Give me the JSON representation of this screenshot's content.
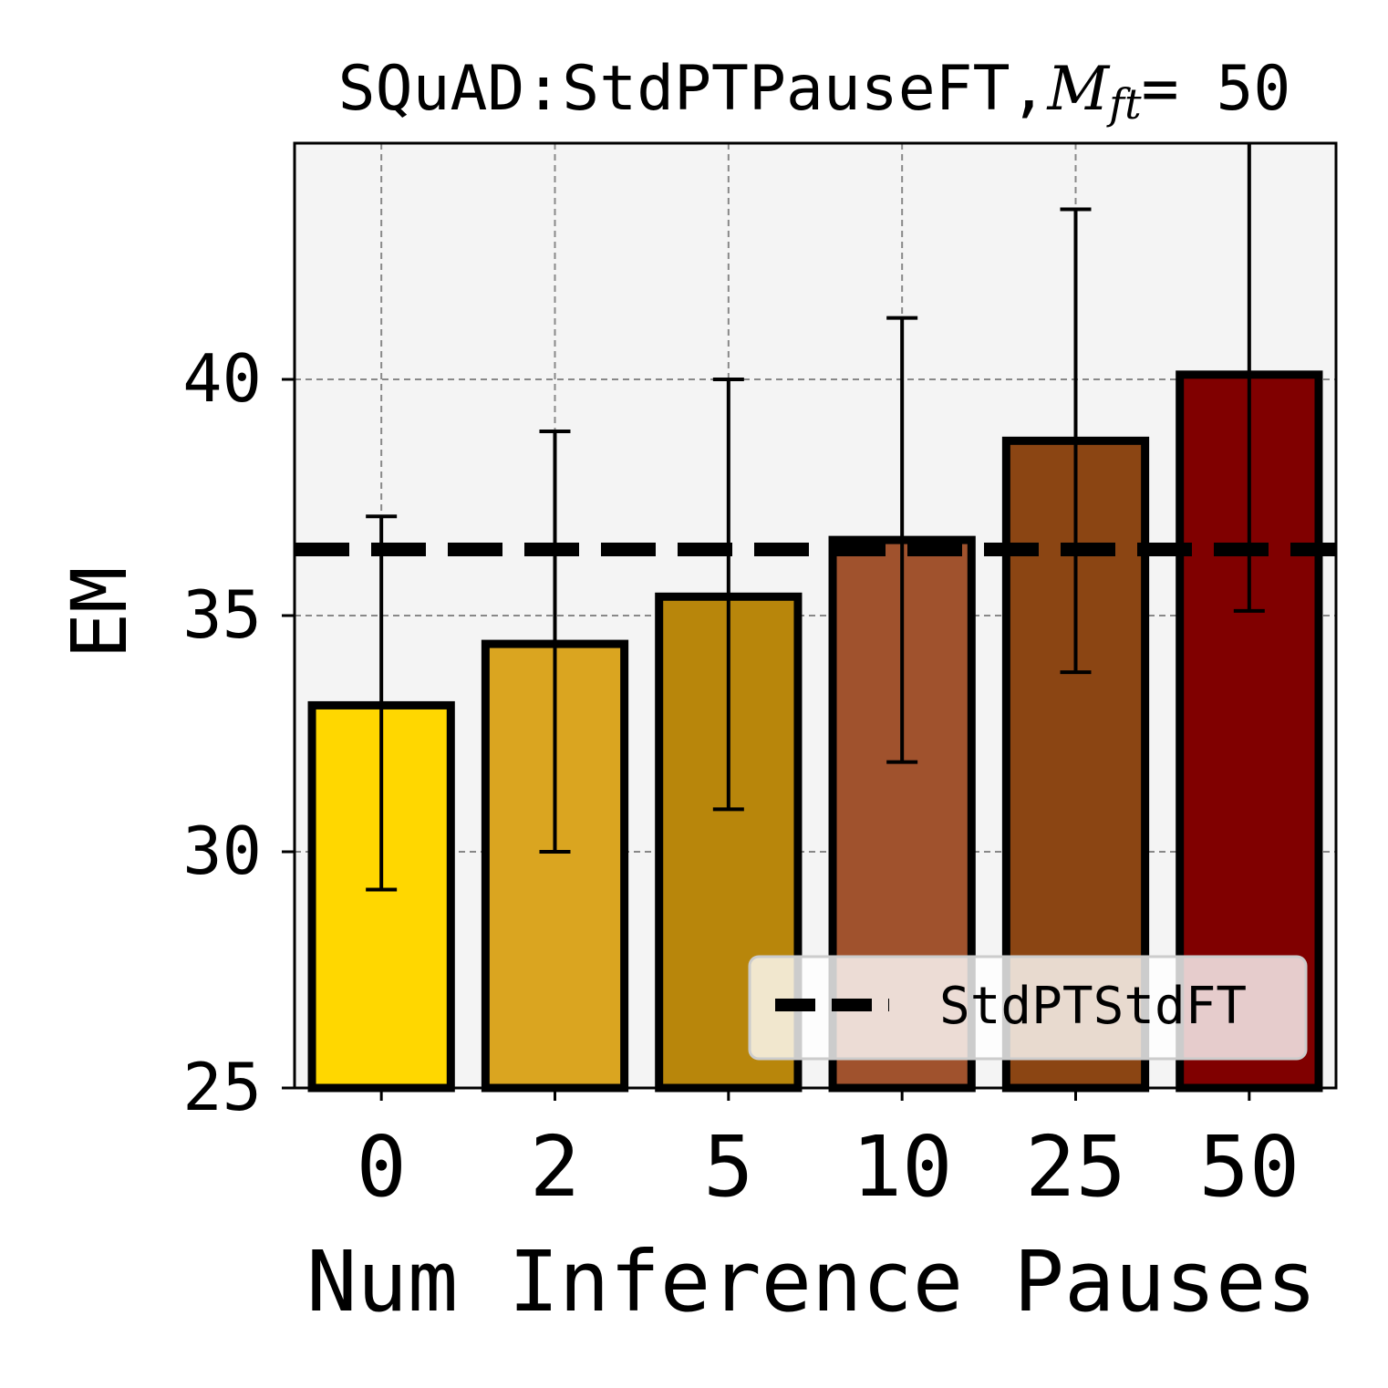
{
  "chart_data": {
    "type": "bar",
    "title_prefix": "SQuAD:StdPTPauseFT,",
    "title_math_var": "M",
    "title_math_sub": "ft",
    "title_math_eq": "= 50",
    "xlabel": "Num Inference Pauses",
    "ylabel": "EM",
    "categories": [
      "0",
      "2",
      "5",
      "10",
      "25",
      "50"
    ],
    "values": [
      33.1,
      34.4,
      35.4,
      36.6,
      38.7,
      40.1
    ],
    "error_low": [
      29.2,
      30.0,
      30.9,
      31.9,
      33.8,
      35.1
    ],
    "error_high": [
      37.1,
      38.9,
      40.0,
      41.3,
      43.6,
      45.5
    ],
    "bar_colors": [
      "#FFD700",
      "#DAA520",
      "#B8860B",
      "#A0522D",
      "#8B4513",
      "#800000"
    ],
    "ylim": [
      25,
      45
    ],
    "yticks": [
      "25",
      "30",
      "35",
      "40"
    ],
    "grid": true,
    "baseline": {
      "name": "StdPTStdFT",
      "value": 36.4
    },
    "legend_position": "lower-right"
  }
}
